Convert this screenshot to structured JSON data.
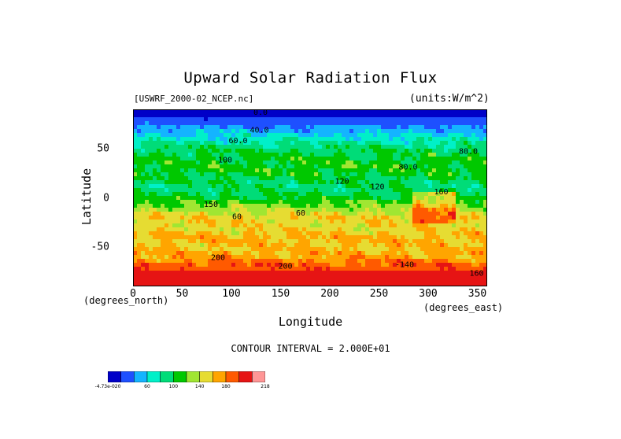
{
  "chart_data": {
    "type": "heatmap",
    "title": "Upward Solar Radiation Flux",
    "source_label": "[USWRF_2000-02_NCEP.nc]",
    "units_label": "(units:W/m^2)",
    "xlabel": "Longitude",
    "ylabel": "Latitude",
    "x_unit_label": "(degrees_east)",
    "y_unit_label": "(degrees_north)",
    "xlim": [
      0,
      360
    ],
    "ylim": [
      -90,
      90
    ],
    "x_ticks": [
      "0",
      "50",
      "100",
      "150",
      "200",
      "250",
      "300",
      "350"
    ],
    "x_tick_values": [
      0,
      50,
      100,
      150,
      200,
      250,
      300,
      350
    ],
    "y_ticks": [
      "50",
      "0",
      "-50"
    ],
    "y_tick_values": [
      50,
      0,
      -50
    ],
    "contour_interval": "CONTOUR INTERVAL = 2.000E+01",
    "contour_labels": [
      "0.0",
      "40.0",
      "60.0",
      "80.0",
      "80.0",
      "100",
      "120",
      "160",
      "150",
      "200",
      "200",
      "160",
      "-140",
      "60",
      "60",
      "120"
    ],
    "colorbar": {
      "levels": [
        -4.73e-20,
        20,
        40,
        60,
        80,
        100,
        120,
        140,
        160,
        180,
        200,
        218
      ],
      "tick_labels": [
        "-4.73e-020",
        "60",
        "100",
        "140",
        "180",
        "218"
      ],
      "colors": [
        "#0000c8",
        "#1e50ff",
        "#14b4ff",
        "#00f0c8",
        "#00dc78",
        "#00c800",
        "#a0e632",
        "#e6dc32",
        "#ffa500",
        "#ff5a00",
        "#e61414",
        "#ff9696"
      ]
    },
    "latitude_profile": {
      "lat": [
        90,
        80,
        70,
        60,
        50,
        40,
        30,
        20,
        10,
        0,
        -10,
        -20,
        -30,
        -40,
        -50,
        -60,
        -70,
        -80,
        -90
      ],
      "flux": [
        5,
        25,
        45,
        70,
        95,
        105,
        110,
        100,
        90,
        105,
        130,
        155,
        150,
        165,
        160,
        170,
        195,
        205,
        210
      ]
    }
  }
}
